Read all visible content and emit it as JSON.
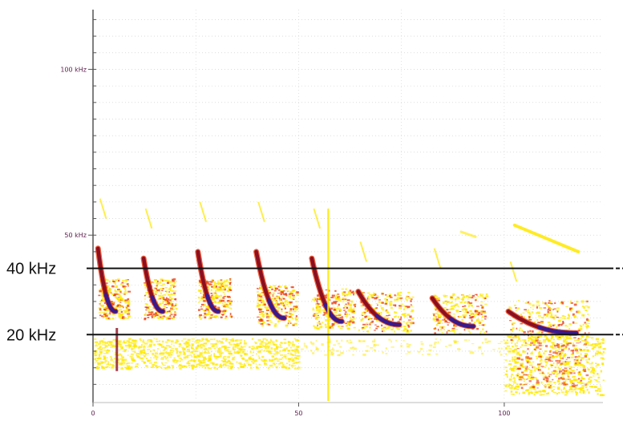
{
  "chart_data": {
    "type": "spectrogram",
    "y_ticks": [
      {
        "value": 100,
        "label": "100 kHz"
      },
      {
        "value": 50,
        "label": "50 kHz"
      }
    ],
    "x_ticks": [
      {
        "value": 0,
        "label": "0"
      },
      {
        "value": 50,
        "label": "50"
      },
      {
        "value": 100,
        "label": "100"
      }
    ],
    "xlim": [
      0,
      124
    ],
    "ylim": [
      0,
      118
    ],
    "grid": true,
    "reference_lines": [
      {
        "value": 40,
        "label": "40 kHz",
        "color": "#111111"
      },
      {
        "value": 20,
        "label": "20 kHz",
        "color": "#111111"
      }
    ],
    "calls": [
      {
        "x_start": 1.2,
        "x_end": 5.5,
        "f_start": 46,
        "f_end": 27
      },
      {
        "x_start": 12.3,
        "x_end": 17.0,
        "f_start": 43,
        "f_end": 27
      },
      {
        "x_start": 25.5,
        "x_end": 30.5,
        "f_start": 45,
        "f_end": 27
      },
      {
        "x_start": 39.7,
        "x_end": 46.5,
        "f_start": 45,
        "f_end": 25
      },
      {
        "x_start": 53.2,
        "x_end": 60.5,
        "f_start": 43,
        "f_end": 24
      },
      {
        "x_start": 64.5,
        "x_end": 74.5,
        "f_start": 33,
        "f_end": 23
      },
      {
        "x_start": 82.5,
        "x_end": 92.5,
        "f_start": 31,
        "f_end": 22.5
      },
      {
        "x_start": 101.0,
        "x_end": 117.5,
        "f_start": 27,
        "f_end": 20.5
      }
    ],
    "colors": {
      "background": "#ffffff",
      "low": "#ffe800",
      "mid": "#e83a10",
      "high": "#8a0f20",
      "peak": "#3a1a8a"
    }
  }
}
